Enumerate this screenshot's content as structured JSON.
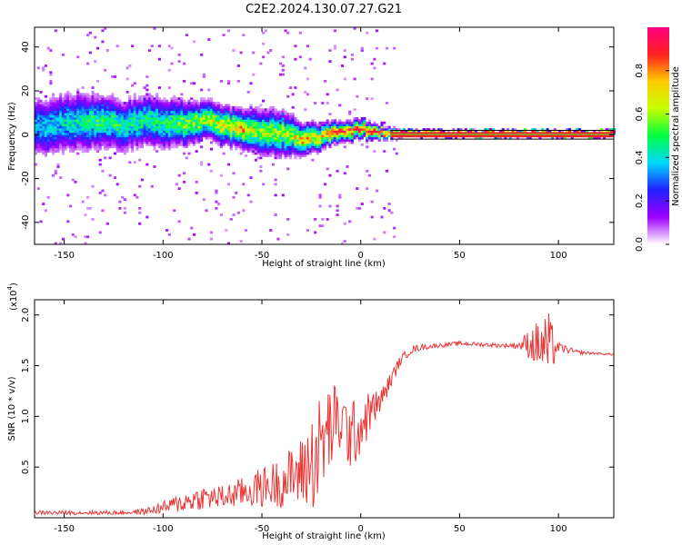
{
  "figure_title": "C2E2.2024.130.07.27.G21",
  "chart_data": [
    {
      "type": "heatmap",
      "xlabel": "Height of straight line (km)",
      "ylabel": "Frequency (Hz)",
      "xlim": [
        -165,
        128
      ],
      "ylim": [
        -50,
        49
      ],
      "x_ticks": [
        -150,
        -100,
        -50,
        0,
        50,
        100
      ],
      "y_ticks": [
        -40,
        -20,
        0,
        20,
        40
      ],
      "colorbar": {
        "label": "Normalized spectral amplitude",
        "range": [
          0,
          1
        ],
        "ticks": [
          0.0,
          0.2,
          0.4,
          0.6,
          0.8
        ],
        "colors": [
          "#ffffff",
          "#a000ff",
          "#2020ff",
          "#00d8ff",
          "#00ff40",
          "#c8ff00",
          "#ffcc00",
          "#ff2020",
          "#ff0080"
        ]
      },
      "ridge": {
        "x": [
          -165,
          -150,
          -140,
          -130,
          -120,
          -110,
          -100,
          -90,
          -80,
          -70,
          -60,
          -50,
          -40,
          -30,
          -20,
          -10,
          0,
          10,
          20,
          50,
          90,
          100,
          128
        ],
        "y": [
          3,
          5,
          6,
          5,
          4,
          6,
          5,
          5,
          6,
          4,
          2,
          0,
          0,
          -2,
          -1,
          1,
          2,
          1,
          0,
          0,
          0,
          0,
          0
        ],
        "amp": [
          0.35,
          0.4,
          0.45,
          0.5,
          0.45,
          0.45,
          0.45,
          0.55,
          0.6,
          0.65,
          0.7,
          0.6,
          0.6,
          0.7,
          0.75,
          0.85,
          0.85,
          0.9,
          0.9,
          0.9,
          0.9,
          0.9,
          0.9
        ],
        "spread": [
          9,
          9,
          9,
          8,
          8,
          8,
          8,
          7,
          6,
          6,
          6,
          7,
          7,
          5,
          4,
          3,
          3,
          2,
          1,
          1,
          1,
          1,
          1
        ]
      }
    },
    {
      "type": "line",
      "xlabel": "Height of straight line (km)",
      "ylabel": "SNR (10 * v/v)",
      "y_multiplier_label": "(x10",
      "y_multiplier_exp": "4",
      "xlim": [
        -165,
        128
      ],
      "ylim": [
        0,
        2.15
      ],
      "x_ticks": [
        -150,
        -100,
        -50,
        0,
        50,
        100
      ],
      "y_ticks": [
        0.5,
        1.0,
        1.5,
        2.0
      ],
      "series": [
        {
          "color": "#ee3333",
          "x": [
            -165,
            -150,
            -140,
            -130,
            -120,
            -110,
            -100,
            -90,
            -80,
            -70,
            -60,
            -50,
            -40,
            -30,
            -25,
            -20,
            -15,
            -10,
            -5,
            0,
            5,
            10,
            15,
            20,
            25,
            30,
            40,
            50,
            60,
            70,
            80,
            85,
            90,
            95,
            100,
            110,
            120,
            128
          ],
          "y": [
            0.05,
            0.05,
            0.05,
            0.05,
            0.05,
            0.06,
            0.1,
            0.15,
            0.2,
            0.2,
            0.25,
            0.3,
            0.35,
            0.45,
            0.55,
            0.7,
            0.9,
            0.95,
            0.8,
            0.9,
            1.05,
            1.15,
            1.35,
            1.55,
            1.65,
            1.68,
            1.7,
            1.72,
            1.71,
            1.7,
            1.7,
            1.72,
            1.7,
            1.68,
            1.68,
            1.63,
            1.62,
            1.61
          ],
          "noise": [
            0.02,
            0.02,
            0.02,
            0.02,
            0.02,
            0.03,
            0.06,
            0.1,
            0.12,
            0.12,
            0.15,
            0.2,
            0.25,
            0.35,
            0.5,
            0.55,
            0.45,
            0.35,
            0.35,
            0.3,
            0.2,
            0.12,
            0.08,
            0.05,
            0.04,
            0.03,
            0.02,
            0.02,
            0.02,
            0.02,
            0.03,
            0.15,
            0.25,
            0.35,
            0.05,
            0.02,
            0.01,
            0.01
          ]
        }
      ]
    }
  ]
}
